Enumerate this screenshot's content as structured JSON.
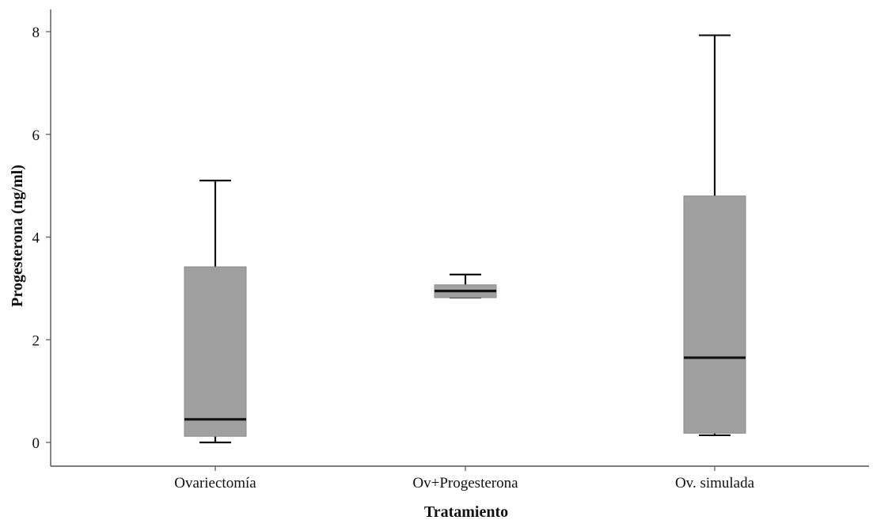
{
  "chart_data": {
    "type": "boxplot",
    "xlabel": "Tratamiento",
    "ylabel": "Progesterona  (ng/ml)",
    "ylim": [
      -0.35,
      8.5
    ],
    "yticks": [
      0,
      2,
      4,
      6,
      8
    ],
    "grid": false,
    "box_color": "#a0a0a0",
    "categories": [
      "Ovariectomía",
      "Ov+Progesterona",
      "Ov. simulada"
    ],
    "series": [
      {
        "category": "Ovariectomía",
        "min": 0.0,
        "q1": 0.12,
        "median": 0.45,
        "q3": 3.42,
        "max": 5.1
      },
      {
        "category": "Ov+Progesterona",
        "min": 2.82,
        "q1": 2.82,
        "median": 2.95,
        "q3": 3.07,
        "max": 3.27
      },
      {
        "category": "Ov. simulada",
        "min": 0.14,
        "q1": 0.18,
        "median": 1.65,
        "q3": 4.8,
        "max": 7.93
      }
    ]
  }
}
